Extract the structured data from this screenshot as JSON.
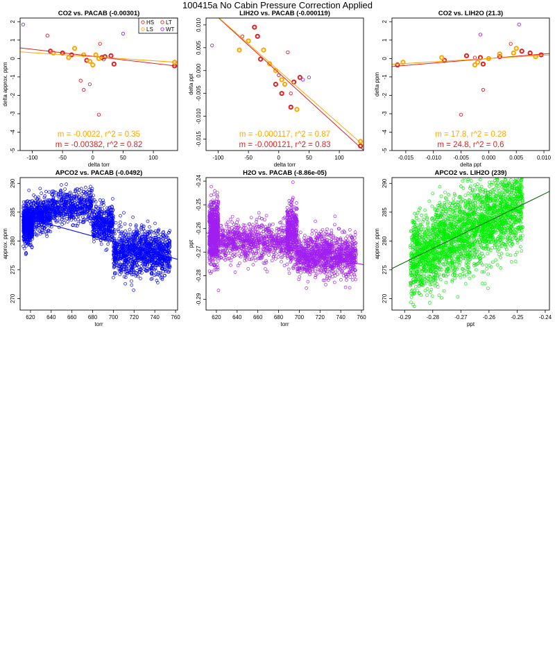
{
  "page": {
    "title": "100415a   No Cabin Pressure Correction Applied"
  },
  "colors": {
    "HS": "#e02020",
    "LS": "#ffa500",
    "LT": "#e02020",
    "WT": "#a020f0",
    "apco2_pts": "#0000ff",
    "h2o_pts": "#a020f0",
    "apco2_lih2o_pts": "#00ee00"
  },
  "chart_data": [
    {
      "id": "p1",
      "type": "scatter",
      "title": "CO2 vs. PACAB (-0.00301)",
      "xlabel": "delta torr",
      "ylabel": "delta approx. ppm",
      "xlim": [
        -120,
        140
      ],
      "ylim": [
        -5,
        2.2
      ],
      "xticks": [
        -100,
        -50,
        0,
        50,
        100
      ],
      "yticks": [
        -5,
        -4,
        -3,
        -2,
        -1,
        0,
        1,
        2
      ],
      "legend": {
        "placement": "top-right",
        "entries": [
          {
            "name": "HS",
            "color": "#e02020"
          },
          {
            "name": "LT",
            "color": "#e02020"
          },
          {
            "name": "LS",
            "color": "#ffa500"
          },
          {
            "name": "WT",
            "color": "#a020f0"
          }
        ]
      },
      "series": [
        {
          "name": "HS",
          "color": "#e02020",
          "bold": true,
          "points": [
            [
              -70,
              0.4
            ],
            [
              -50,
              0.3
            ],
            [
              -35,
              0.2
            ],
            [
              -10,
              -0.1
            ],
            [
              15,
              0.05
            ],
            [
              20,
              0.1
            ],
            [
              30,
              0.15
            ],
            [
              35,
              -0.3
            ],
            [
              135,
              -0.4
            ]
          ]
        },
        {
          "name": "LS",
          "color": "#ffa500",
          "bold": true,
          "points": [
            [
              -65,
              0.3
            ],
            [
              -40,
              0.05
            ],
            [
              -30,
              0.55
            ],
            [
              -15,
              0.2
            ],
            [
              -5,
              -0.15
            ],
            [
              0,
              -0.35
            ],
            [
              5,
              0.2
            ],
            [
              10,
              0.0
            ],
            [
              135,
              -0.2
            ]
          ]
        },
        {
          "name": "LT",
          "color": "#e02020",
          "bold": false,
          "points": [
            [
              -75,
              1.25
            ],
            [
              -20,
              -1.2
            ],
            [
              -15,
              -1.7
            ],
            [
              -5,
              -1.4
            ],
            [
              10,
              -3.05
            ],
            [
              12,
              0.8
            ],
            [
              18,
              -0.05
            ]
          ]
        },
        {
          "name": "WT",
          "color": "#a020f0",
          "bold": false,
          "points": [
            [
              -115,
              1.85
            ],
            [
              50,
              1.35
            ]
          ]
        }
      ],
      "fits": [
        {
          "color": "#e02020",
          "slope": -0.00382,
          "intercept": 0.12
        },
        {
          "color": "#ffa500",
          "slope": -0.0022,
          "intercept": 0.1
        }
      ],
      "annotations": [
        {
          "text": "m = -0.0022, r^2 = 0.35",
          "color": "#ffa500"
        },
        {
          "text": "m = -0.00382, r^2 = 0.82",
          "color": "#e02020"
        }
      ]
    },
    {
      "id": "p2",
      "type": "scatter",
      "title": "LIH2O vs. PACAB (-0.000119)",
      "xlabel": "delta torr",
      "ylabel": "delta ppt",
      "xlim": [
        -120,
        140
      ],
      "ylim": [
        -0.0175,
        0.0115
      ],
      "xticks": [
        -100,
        -50,
        0,
        50,
        100
      ],
      "yticks": [
        -0.015,
        -0.01,
        -0.005,
        0,
        0.005,
        0.01
      ],
      "yticklabels": [
        "-0.015",
        "-0.010",
        "-0.005",
        "0.000",
        "0.005",
        "0.010"
      ],
      "series": [
        {
          "name": "HS",
          "color": "#e02020",
          "bold": true,
          "points": [
            [
              -40,
              0.0095
            ],
            [
              -35,
              0.0075
            ],
            [
              -30,
              0.0025
            ],
            [
              -5,
              -0.003
            ],
            [
              5,
              -0.005
            ],
            [
              20,
              -0.008
            ],
            [
              25,
              -0.0025
            ],
            [
              35,
              -0.0015
            ],
            [
              135,
              -0.0165
            ]
          ]
        },
        {
          "name": "LS",
          "color": "#ffa500",
          "bold": true,
          "points": [
            [
              -65,
              0.0045
            ],
            [
              -50,
              0.0065
            ],
            [
              -25,
              0.0045
            ],
            [
              -15,
              0.0015
            ],
            [
              -5,
              0.0
            ],
            [
              5,
              -0.002
            ],
            [
              10,
              -0.003
            ],
            [
              30,
              -0.0085
            ],
            [
              135,
              -0.0155
            ]
          ]
        },
        {
          "name": "LT",
          "color": "#e02020",
          "bold": false,
          "points": [
            [
              -60,
              0.0075
            ],
            [
              0,
              -0.001
            ],
            [
              15,
              0.004
            ],
            [
              20,
              -0.005
            ]
          ]
        },
        {
          "name": "WT",
          "color": "#a020f0",
          "bold": false,
          "points": [
            [
              -110,
              0.0055
            ],
            [
              40,
              -0.002
            ],
            [
              50,
              -0.0015
            ]
          ]
        }
      ],
      "fits": [
        {
          "color": "#e02020",
          "slope": -0.000121,
          "intercept": -0.0005
        },
        {
          "color": "#ffa500",
          "slope": -0.000117,
          "intercept": 0.0
        }
      ],
      "annotations": [
        {
          "text": "m = -0.000117, r^2 = 0.87",
          "color": "#ffa500"
        },
        {
          "text": "m = -0.000121, r^2 = 0.83",
          "color": "#e02020"
        }
      ]
    },
    {
      "id": "p3",
      "type": "scatter",
      "title": "CO2 vs. LIH2O (21.3)",
      "xlabel": "delta ppt",
      "ylabel": "delta ppm",
      "xlim": [
        -0.0175,
        0.011
      ],
      "ylim": [
        -5,
        2.2
      ],
      "xticks": [
        -0.015,
        -0.01,
        -0.005,
        0,
        0.005,
        0.01
      ],
      "xticklabels": [
        "-0.015",
        "-0.010",
        "-0.005",
        "0.000",
        "0.005",
        "0.010"
      ],
      "yticks": [
        -5,
        -4,
        -3,
        -2,
        -1,
        0,
        1,
        2
      ],
      "series": [
        {
          "name": "HS",
          "color": "#e02020",
          "bold": true,
          "points": [
            [
              -0.0165,
              -0.35
            ],
            [
              -0.008,
              -0.1
            ],
            [
              -0.004,
              0.15
            ],
            [
              -0.0015,
              0.05
            ],
            [
              -0.001,
              -0.3
            ],
            [
              0.002,
              0.1
            ],
            [
              0.006,
              0.4
            ],
            [
              0.0075,
              0.3
            ],
            [
              0.0095,
              0.2
            ]
          ]
        },
        {
          "name": "LS",
          "color": "#ffa500",
          "bold": true,
          "points": [
            [
              -0.0155,
              -0.2
            ],
            [
              -0.0085,
              0.05
            ],
            [
              -0.002,
              -0.2
            ],
            [
              0.0,
              0.0
            ],
            [
              0.002,
              0.25
            ],
            [
              0.005,
              0.55
            ],
            [
              0.0045,
              0.3
            ],
            [
              0.0085,
              0.1
            ],
            [
              -0.0025,
              -0.35
            ]
          ]
        },
        {
          "name": "LT",
          "color": "#e02020",
          "bold": false,
          "points": [
            [
              -0.005,
              -3.05
            ],
            [
              -0.001,
              -1.7
            ],
            [
              0.004,
              0.8
            ],
            [
              -0.0025,
              0.05
            ]
          ]
        },
        {
          "name": "WT",
          "color": "#a020f0",
          "bold": false,
          "points": [
            [
              0.0055,
              1.85
            ],
            [
              -0.0015,
              1.3
            ]
          ]
        }
      ],
      "fits": [
        {
          "color": "#e02020",
          "slope": 24.8,
          "intercept": 0.0
        },
        {
          "color": "#ffa500",
          "slope": 17.8,
          "intercept": 0.0
        }
      ],
      "annotations": [
        {
          "text": "m = 17.8, r^2 = 0.28",
          "color": "#ffa500"
        },
        {
          "text": "m = 24.8, r^2 = 0.6",
          "color": "#e02020"
        }
      ]
    },
    {
      "id": "p4",
      "type": "scatter",
      "title": "APCO2 vs. PACAB (-0.0492)",
      "xlabel": "torr",
      "ylabel": "approx. ppm",
      "xlim": [
        610,
        762
      ],
      "ylim": [
        268,
        291
      ],
      "xticks": [
        620,
        640,
        660,
        680,
        700,
        720,
        740,
        760
      ],
      "yticks": [
        270,
        275,
        280,
        285,
        290
      ],
      "point_color": "#0000ff",
      "clusters": [
        {
          "x": [
            613,
            622
          ],
          "y_center": 283,
          "y_spread": 3,
          "n": 700
        },
        {
          "x": [
            622,
            640
          ],
          "y_center": 284.5,
          "y_spread": 2.5,
          "n": 400
        },
        {
          "x": [
            640,
            680
          ],
          "y_center": 286,
          "y_spread": 2.5,
          "n": 500
        },
        {
          "x": [
            680,
            700
          ],
          "y_center": 283,
          "y_spread": 3,
          "n": 400
        },
        {
          "x": [
            700,
            755
          ],
          "y_center": 278,
          "y_spread": 3.5,
          "n": 1100
        }
      ],
      "fit": {
        "color": "#0000ff",
        "slope": -0.0492,
        "intercept": 314.3
      }
    },
    {
      "id": "p5",
      "type": "scatter",
      "title": "H2O vs. PACAB (-8.86e-05)",
      "xlabel": "torr",
      "ylabel": "ppt",
      "xlim": [
        610,
        762
      ],
      "ylim": [
        -0.2945,
        -0.2385
      ],
      "xticks": [
        620,
        640,
        660,
        680,
        700,
        720,
        740,
        760
      ],
      "yticks": [
        -0.29,
        -0.28,
        -0.27,
        -0.26,
        -0.25,
        -0.24
      ],
      "point_color": "#a020f0",
      "clusters": [
        {
          "x": [
            613,
            622
          ],
          "y_center": -0.262,
          "y_spread": 0.012,
          "n": 700
        },
        {
          "x": [
            622,
            690
          ],
          "y_center": -0.2655,
          "y_spread": 0.007,
          "n": 800
        },
        {
          "x": [
            688,
            698
          ],
          "y_center": -0.262,
          "y_spread": 0.011,
          "n": 400
        },
        {
          "x": [
            698,
            755
          ],
          "y_center": -0.2715,
          "y_spread": 0.008,
          "n": 1100
        }
      ],
      "fit": {
        "color": "#a020f0",
        "slope": -8.86e-05,
        "intercept": -0.2078
      }
    },
    {
      "id": "p6",
      "type": "scatter",
      "title": "APCO2 vs. LIH2O (239)",
      "xlabel": "ppt",
      "ylabel": "approx. ppm",
      "xlim": [
        -0.2945,
        -0.2385
      ],
      "ylim": [
        268,
        291
      ],
      "xticks": [
        -0.29,
        -0.28,
        -0.27,
        -0.26,
        -0.25,
        -0.24
      ],
      "yticks": [
        270,
        275,
        280,
        285,
        290
      ],
      "point_color": "#00ee00",
      "clusters": [
        {
          "x": [
            -0.288,
            -0.248
          ],
          "y_center": 281.5,
          "y_spread": 3.5,
          "n": 2600,
          "correlate": 239
        }
      ],
      "fit": {
        "color": "#006400",
        "slope": 239,
        "intercept": 345.6
      }
    }
  ]
}
